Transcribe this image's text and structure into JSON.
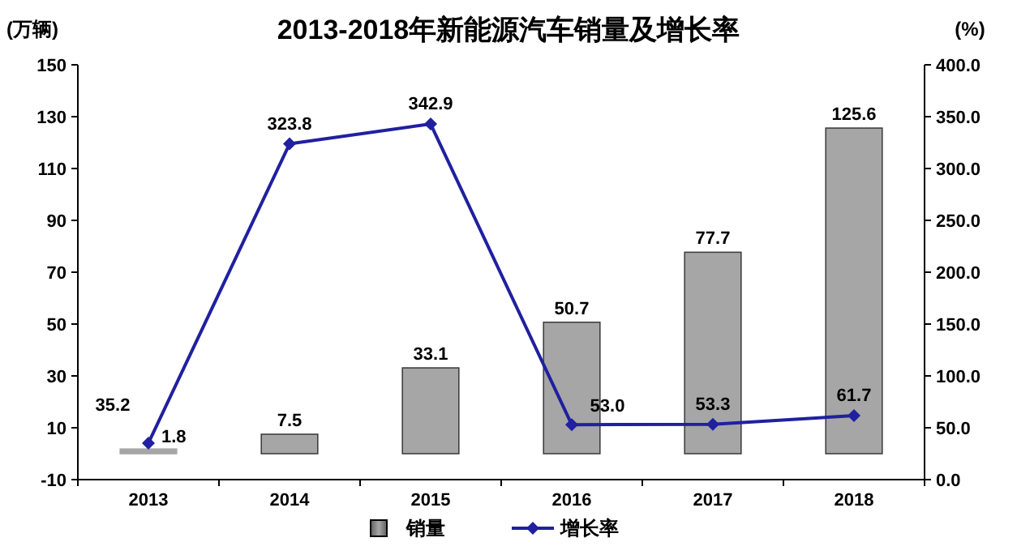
{
  "chart_data": {
    "type": "bar",
    "title": "2013-2018年新能源汽车销量及增长率",
    "ylabel": "(万辆)",
    "y2label": "(%)",
    "categories": [
      "2013",
      "2014",
      "2015",
      "2016",
      "2017",
      "2018"
    ],
    "series": [
      {
        "name": "销量",
        "color": "#a6a6a6",
        "values": [
          1.8,
          7.5,
          33.1,
          50.7,
          77.7,
          125.6
        ],
        "value_labels": [
          "1.8",
          "7.5",
          "33.1",
          "50.7",
          "77.7",
          "125.6"
        ]
      },
      {
        "name": "增长率",
        "type": "line",
        "axis": "y2",
        "color": "#2020a0",
        "marker": "diamond",
        "values": [
          35.2,
          323.8,
          342.9,
          53.0,
          53.3,
          61.7
        ],
        "value_labels": [
          "35.2",
          "323.8",
          "342.9",
          "53.0",
          "53.3",
          "61.7"
        ]
      }
    ],
    "ylim": [
      -10,
      150
    ],
    "yticks": [
      -10,
      10,
      30,
      50,
      70,
      90,
      110,
      130,
      150
    ],
    "y2lim": [
      0,
      400
    ],
    "y2ticks": [
      {
        "value": 0,
        "label": "0.0"
      },
      {
        "value": 50,
        "label": "50.0"
      },
      {
        "value": 100,
        "label": "100.0"
      },
      {
        "value": 150,
        "label": "150.0"
      },
      {
        "value": 200,
        "label": "200.0"
      },
      {
        "value": 250,
        "label": "250.0"
      },
      {
        "value": 300,
        "label": "300.0"
      },
      {
        "value": 350,
        "label": "350.0"
      },
      {
        "value": 400,
        "label": "400.0"
      }
    ],
    "grid": false,
    "legend": "bottom"
  }
}
